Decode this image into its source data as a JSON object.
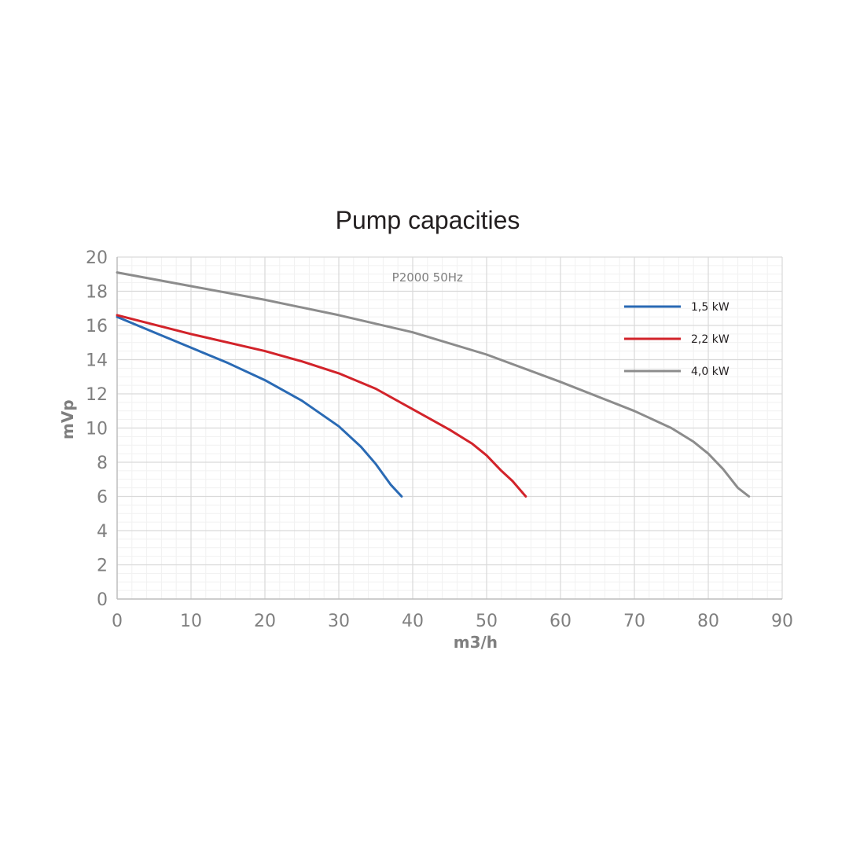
{
  "chart_data": {
    "type": "line",
    "title": "Pump capacities",
    "annotation": "P2000 50Hz",
    "xlabel": "m3/h",
    "ylabel": "mVp",
    "xlim": [
      0,
      90
    ],
    "ylim": [
      0,
      20
    ],
    "x_ticks": [
      0,
      10,
      20,
      30,
      40,
      50,
      60,
      70,
      80,
      90
    ],
    "y_ticks": [
      0,
      2,
      4,
      6,
      8,
      10,
      12,
      14,
      16,
      18,
      20
    ],
    "grid": true,
    "legend_position": "top-right",
    "series": [
      {
        "name": "1,5 kW",
        "color": "#2a6ab4",
        "x": [
          0,
          5,
          10,
          15,
          20,
          25,
          30,
          33,
          35,
          37,
          38.5
        ],
        "y": [
          16.5,
          15.6,
          14.7,
          13.8,
          12.8,
          11.6,
          10.1,
          8.9,
          7.9,
          6.7,
          6.0
        ]
      },
      {
        "name": "2,2 kW",
        "color": "#d2232a",
        "x": [
          0,
          10,
          20,
          25,
          30,
          35,
          40,
          45,
          48,
          50,
          52,
          53.5,
          55.3
        ],
        "y": [
          16.6,
          15.5,
          14.5,
          13.9,
          13.2,
          12.3,
          11.1,
          9.9,
          9.1,
          8.4,
          7.5,
          6.9,
          6.0
        ]
      },
      {
        "name": "4,0 kW",
        "color": "#8c8c8c",
        "x": [
          0,
          10,
          20,
          30,
          40,
          50,
          60,
          70,
          75,
          78,
          80,
          82,
          84,
          85.5
        ],
        "y": [
          19.1,
          18.3,
          17.5,
          16.6,
          15.6,
          14.3,
          12.7,
          11.0,
          10.0,
          9.2,
          8.5,
          7.6,
          6.5,
          6.0
        ]
      }
    ]
  }
}
